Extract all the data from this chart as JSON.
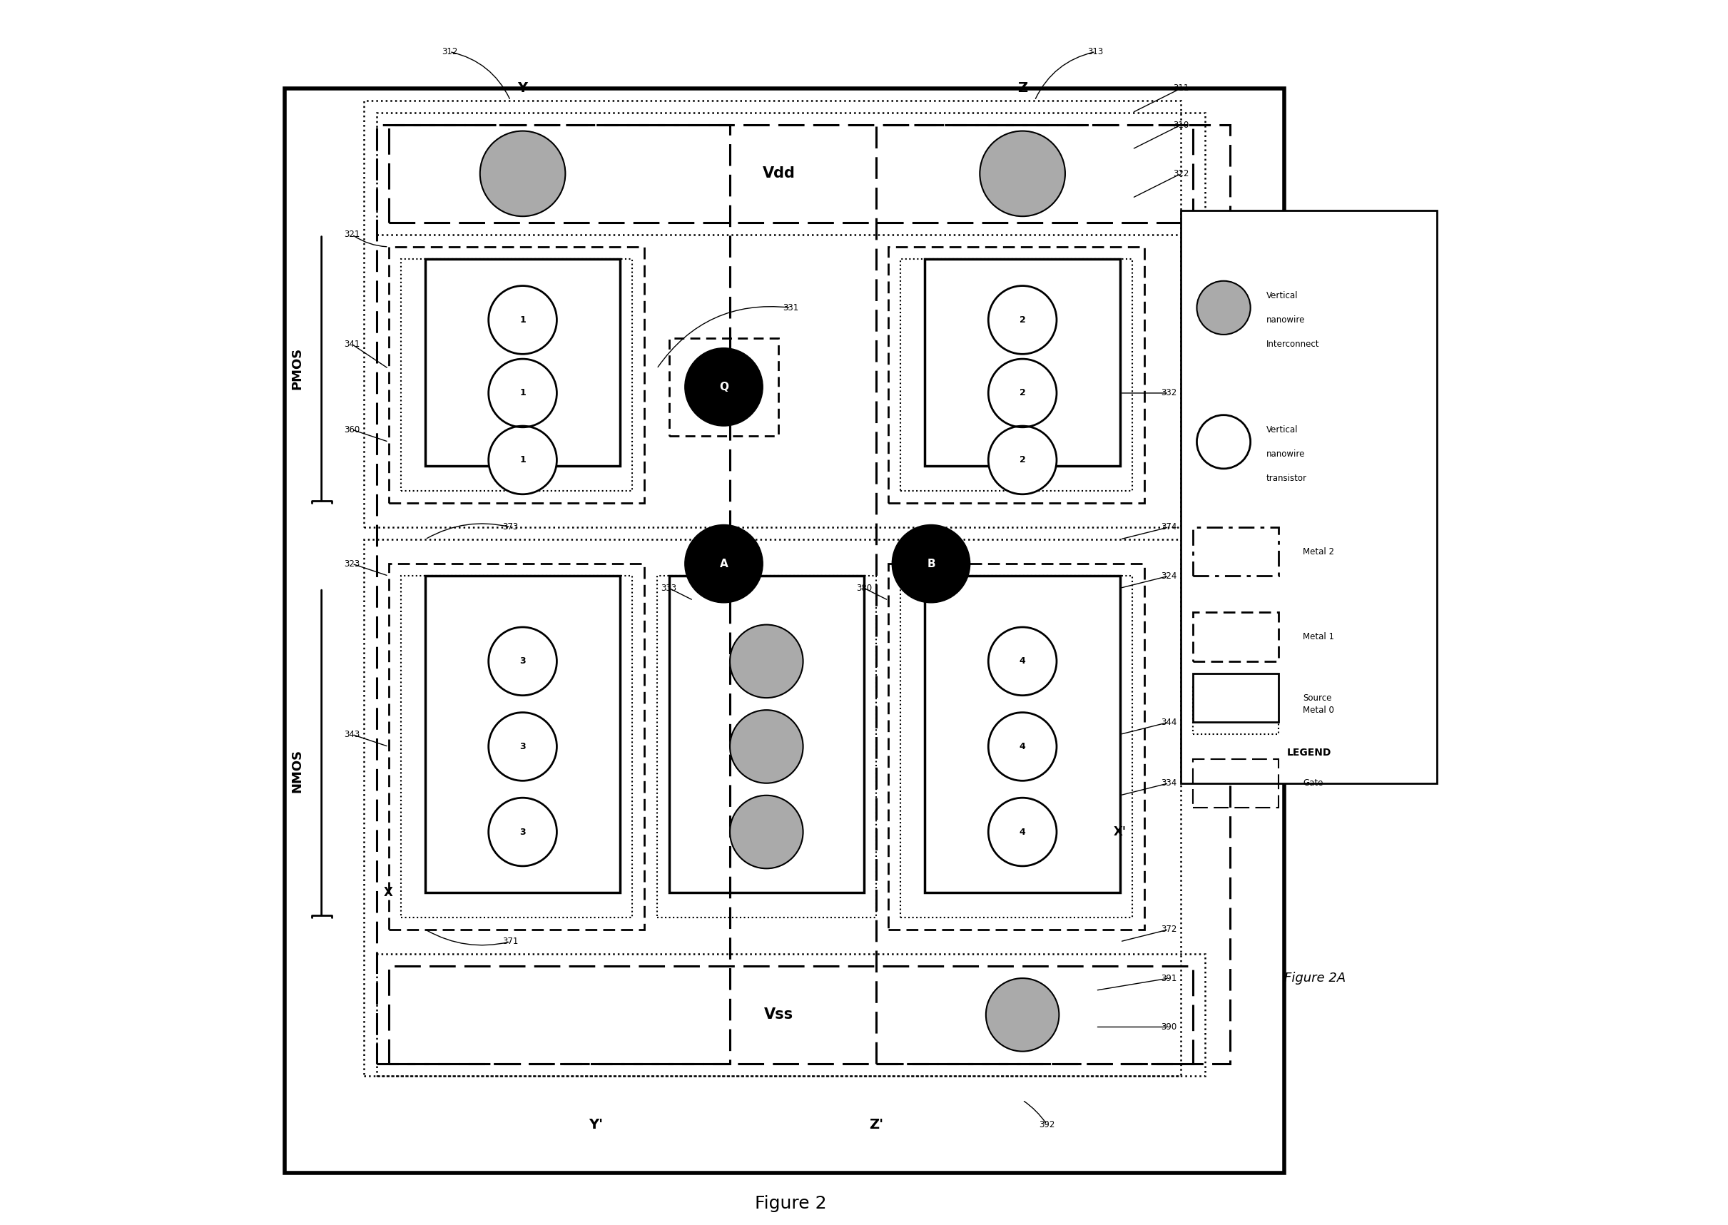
{
  "fig_width": 24.22,
  "fig_height": 17.17,
  "bg_color": "#ffffff",
  "title": "Figure 2",
  "figure_label": "Figure 2A",
  "labels": {
    "vdd": "Vdd",
    "vss": "Vss",
    "pmos": "PMOS",
    "nmos": "NMOS",
    "Y": "Y",
    "Z": "Z",
    "Yp": "Y'",
    "Zp": "Z'",
    "X": "X",
    "Xp": "X'",
    "Q": "Q",
    "A": "A",
    "B": "B",
    "legend_title": "LEGEND",
    "l_vi": "Vertical\nnanowire\nInterconnect",
    "l_vt": "Vertical\nnanowire\ntransistor",
    "l_m2": "Metal 2",
    "l_m1": "Metal 1",
    "l_m0": "Metal 0",
    "l_gate": "Gate",
    "l_source": "Source"
  }
}
